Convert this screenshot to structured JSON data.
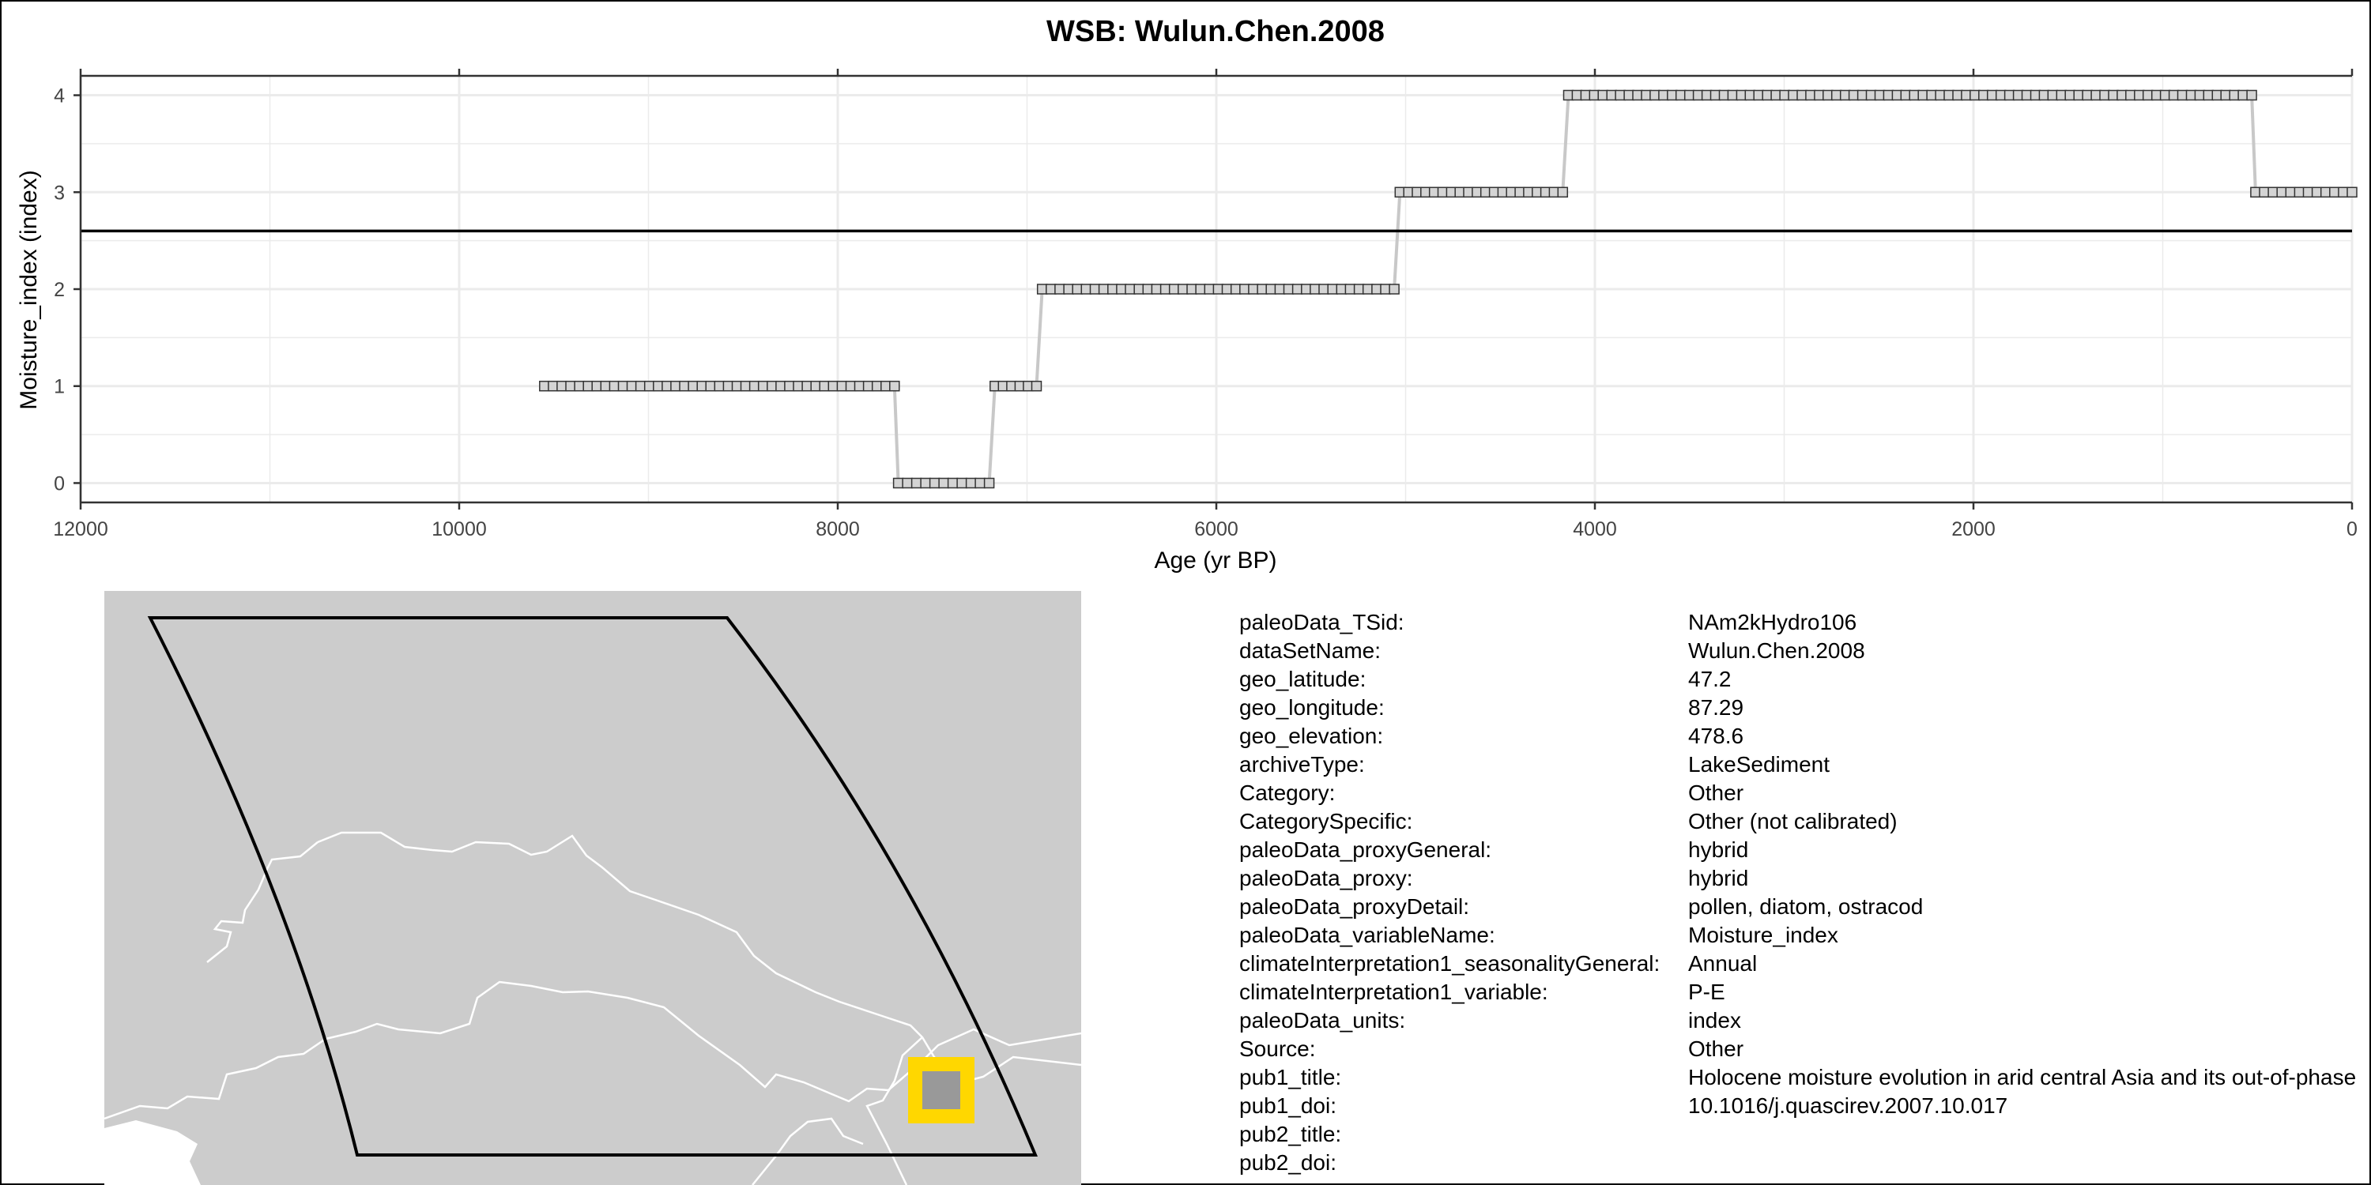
{
  "colors": {
    "series_line": "#c8c8c8",
    "marker_fill": "#d4d4d4",
    "marker_stroke": "#333333",
    "grid": "#ebebeb",
    "mean_line": "#000000",
    "land": "#cccccc",
    "border_lines": "#ffffff",
    "site_marker": "#ffd700"
  },
  "chart_data": {
    "type": "line",
    "title": "WSB: Wulun.Chen.2008",
    "xlabel": "Age (yr BP)",
    "ylabel": "Moisture_index (index)",
    "xlim": [
      12000,
      0
    ],
    "x_reversed": true,
    "ylim": [
      -0.2,
      4.2
    ],
    "x_ticks": [
      12000,
      10000,
      8000,
      6000,
      4000,
      2000,
      0
    ],
    "y_ticks": [
      0,
      1,
      2,
      3,
      4
    ],
    "grid": true,
    "mean_line": 2.6,
    "markers": "square",
    "segments": [
      {
        "x_start": 9550,
        "x_end": 7700,
        "value": 1,
        "count": 41
      },
      {
        "x_start": 7680,
        "x_end": 7200,
        "value": 0,
        "count": 11
      },
      {
        "x_start": 7170,
        "x_end": 6950,
        "value": 1,
        "count": 6
      },
      {
        "x_start": 6920,
        "x_end": 5060,
        "value": 2,
        "count": 41
      },
      {
        "x_start": 5030,
        "x_end": 4170,
        "value": 3,
        "count": 20
      },
      {
        "x_start": 4140,
        "x_end": 530,
        "value": 4,
        "count": 80
      },
      {
        "x_start": 510,
        "x_end": 0,
        "value": 3,
        "count": 12
      }
    ]
  },
  "map": {
    "legend": "",
    "site_latitude": 47.2,
    "site_longitude": 87.29
  },
  "info": [
    {
      "key": "paleoData_TSid:",
      "value": "NAm2kHydro106"
    },
    {
      "key": "dataSetName:",
      "value": "Wulun.Chen.2008"
    },
    {
      "key": "geo_latitude:",
      "value": "47.2"
    },
    {
      "key": "geo_longitude:",
      "value": "87.29"
    },
    {
      "key": "geo_elevation:",
      "value": "478.6"
    },
    {
      "key": "archiveType:",
      "value": "LakeSediment"
    },
    {
      "key": "Category:",
      "value": "Other"
    },
    {
      "key": "CategorySpecific:",
      "value": "Other (not calibrated)"
    },
    {
      "key": "paleoData_proxyGeneral:",
      "value": "hybrid"
    },
    {
      "key": "paleoData_proxy:",
      "value": "hybrid"
    },
    {
      "key": "paleoData_proxyDetail:",
      "value": "pollen, diatom, ostracod"
    },
    {
      "key": "paleoData_variableName:",
      "value": "Moisture_index"
    },
    {
      "key": "climateInterpretation1_seasonalityGeneral:",
      "value": "Annual"
    },
    {
      "key": "climateInterpretation1_variable:",
      "value": "P-E"
    },
    {
      "key": "paleoData_units:",
      "value": "index"
    },
    {
      "key": "Source:",
      "value": "Other"
    },
    {
      "key": "pub1_title:",
      "value": "Holocene moisture evolution in arid central Asia and its out-of-phase"
    },
    {
      "key": "pub1_doi:",
      "value": "10.1016/j.quascirev.2007.10.017"
    },
    {
      "key": "pub2_title:",
      "value": ""
    },
    {
      "key": "pub2_doi:",
      "value": ""
    }
  ]
}
